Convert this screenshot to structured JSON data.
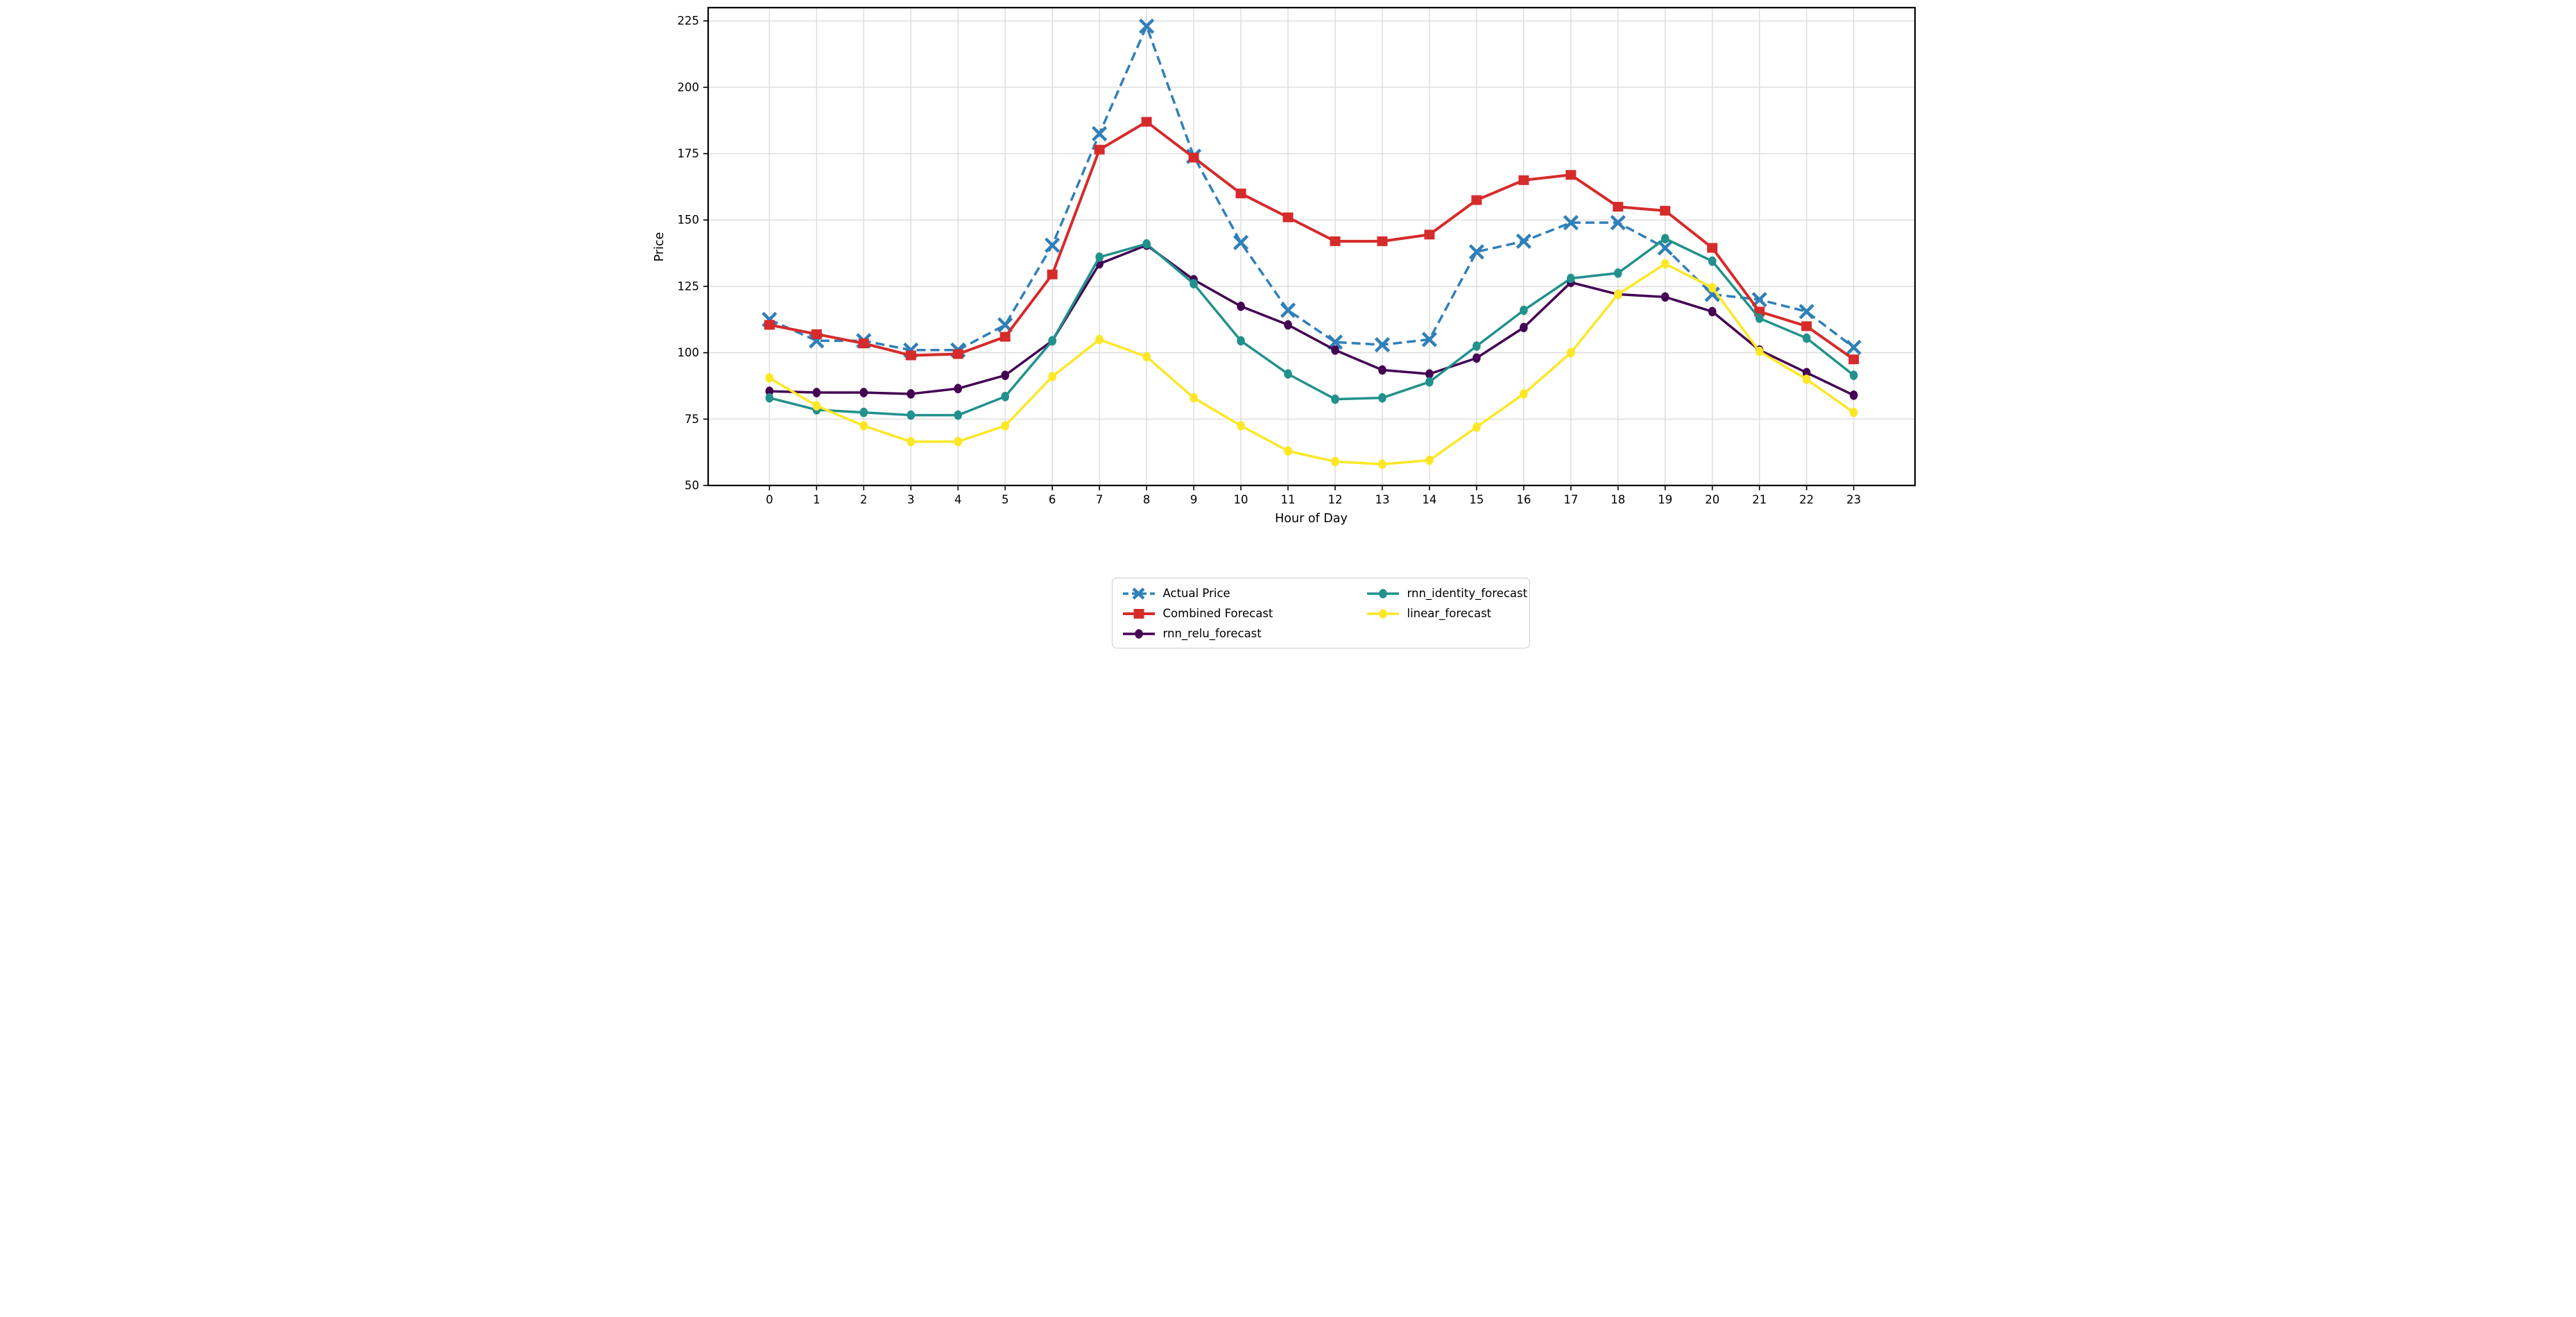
{
  "chart_data": {
    "type": "line",
    "title": "",
    "xlabel": "Hour of Day",
    "ylabel": "Price",
    "x": [
      0,
      1,
      2,
      3,
      4,
      5,
      6,
      7,
      8,
      9,
      10,
      11,
      12,
      13,
      14,
      15,
      16,
      17,
      18,
      19,
      20,
      21,
      22,
      23
    ],
    "xtick_labels": [
      "0",
      "1",
      "2",
      "3",
      "4",
      "5",
      "6",
      "7",
      "8",
      "9",
      "10",
      "11",
      "12",
      "13",
      "14",
      "15",
      "16",
      "17",
      "18",
      "19",
      "20",
      "21",
      "22",
      "23"
    ],
    "yticks": [
      50,
      75,
      100,
      125,
      150,
      175,
      200,
      225
    ],
    "xlim": [
      -1.3,
      24.3
    ],
    "ylim": [
      50,
      230
    ],
    "grid": true,
    "legend_position": "below-center, 2 columns",
    "style": {
      "grid_color": "#dcdcdc",
      "spine_color": "#000000",
      "tick_label_color": "#000000",
      "background": "#ffffff"
    },
    "series": [
      {
        "name": "Actual Price",
        "color": "#2f7fb9",
        "line_style": "dashed",
        "marker": "x",
        "values": [
          112.5,
          104.5,
          104.5,
          101,
          101,
          110.5,
          140.5,
          182.5,
          223,
          174,
          141.5,
          116,
          104,
          103,
          105,
          138,
          142,
          149,
          149,
          139.5,
          122,
          120,
          115.5,
          102
        ]
      },
      {
        "name": "Combined Forecast",
        "color": "#d62b2b",
        "line_style": "solid",
        "marker": "square",
        "values": [
          110.5,
          107,
          103.5,
          99,
          99.5,
          106,
          129.5,
          176.5,
          187,
          173.5,
          160,
          151,
          142,
          142,
          144.5,
          157.5,
          165,
          167,
          155,
          153.5,
          139.5,
          115.5,
          110,
          97.5
        ]
      },
      {
        "name": "rnn_relu_forecast",
        "color": "#440154",
        "line_style": "solid",
        "marker": "circle",
        "values": [
          85.5,
          85,
          85,
          84.5,
          86.5,
          91.5,
          104.5,
          133.5,
          140.5,
          127.5,
          117.5,
          110.5,
          101,
          93.5,
          92,
          98,
          109.5,
          126.5,
          122,
          121,
          115.5,
          101,
          92.5,
          84
        ]
      },
      {
        "name": "rnn_identity_forecast",
        "color": "#21918c",
        "line_style": "solid",
        "marker": "circle",
        "values": [
          83,
          78.5,
          77.5,
          76.5,
          76.5,
          83.5,
          104.5,
          136,
          141,
          126,
          104.5,
          92,
          82.5,
          83,
          89,
          102.5,
          116,
          128,
          130,
          143,
          134.5,
          113,
          105.5,
          91.5
        ]
      },
      {
        "name": "linear_forecast",
        "color": "#fde725",
        "line_style": "solid",
        "marker": "circle",
        "values": [
          90.5,
          80,
          72.5,
          66.5,
          66.5,
          72.5,
          91,
          105,
          98.5,
          83,
          72.5,
          63,
          59,
          58,
          59.5,
          72,
          84.5,
          100,
          122,
          133.5,
          124.5,
          100.5,
          90,
          77.5
        ]
      }
    ]
  }
}
